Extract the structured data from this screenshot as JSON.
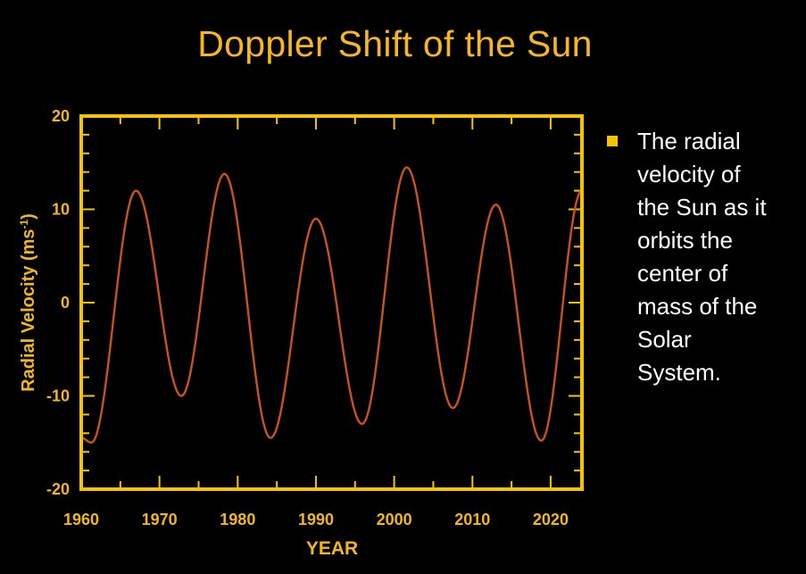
{
  "title": "Doppler Shift of the Sun",
  "bullet": {
    "lines": [
      "The radial",
      "velocity of",
      "the Sun as it",
      "orbits the",
      "center of",
      "mass of the",
      "Solar",
      "System."
    ]
  },
  "colors": {
    "title": "#f5b61e",
    "axis": "#f2b81a",
    "frame": "#f5c400",
    "curve": "#c8531f",
    "bullet_marker": "#f5c400",
    "bullet_text": "#ffffff",
    "background": "#000000"
  },
  "chart_data": {
    "type": "line",
    "title": "Doppler Shift of the Sun",
    "xlabel": "YEAR",
    "ylabel": "Radial Velocity (ms-1)",
    "ylabel_main": "Radial Velocity (ms",
    "ylabel_sup": "-1",
    "ylabel_end": ")",
    "xlim": [
      1960,
      2024
    ],
    "ylim": [
      -20,
      20
    ],
    "x_ticks": [
      1960,
      1970,
      1980,
      1990,
      2000,
      2010,
      2020
    ],
    "y_ticks": [
      -20,
      -10,
      0,
      10,
      20
    ],
    "x_tick_labels": [
      "1960",
      "1970",
      "1980",
      "1990",
      "2000",
      "2010",
      "2020"
    ],
    "y_tick_labels": [
      "-20",
      "-10",
      "0",
      "10",
      "20"
    ],
    "grid": false,
    "legend": "none",
    "series": [
      {
        "x": [
          1960.0,
          1961.3,
          1967.0,
          1972.8,
          1978.3,
          1984.2,
          1990.0,
          1995.9,
          2001.6,
          2007.5,
          2013.0,
          2018.8,
          2024.0
        ],
        "values": [
          -14.5,
          -15.0,
          12.0,
          -10.0,
          13.8,
          -14.5,
          9.0,
          -13.0,
          14.5,
          -11.3,
          10.5,
          -14.8,
          12.0
        ]
      }
    ]
  }
}
